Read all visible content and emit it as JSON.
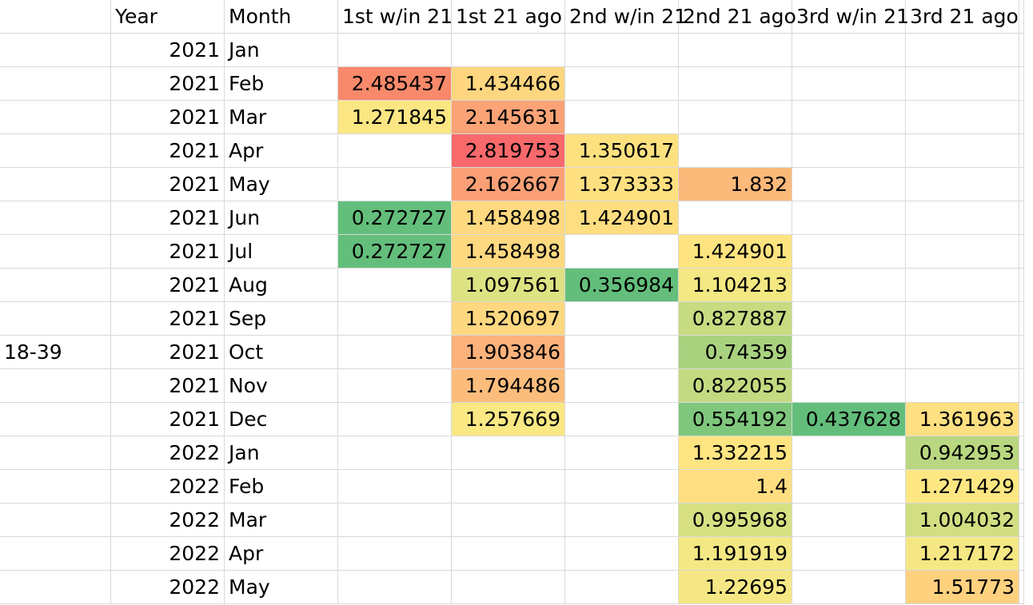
{
  "sheet": {
    "headers": [
      "",
      "Year",
      "Month",
      "1st w/in 21",
      "1st 21 ago",
      "2nd w/in 21",
      "2nd 21 ago",
      "3rd w/in 21",
      "3rd 21 ago"
    ],
    "group_label": "18-39",
    "group_label_row_index": 9,
    "rows": [
      {
        "year": "2021",
        "month": "Jan",
        "values": [
          "",
          "",
          "",
          "",
          "",
          ""
        ],
        "colors": [
          "",
          "",
          "",
          "",
          "",
          ""
        ]
      },
      {
        "year": "2021",
        "month": "Feb",
        "values": [
          "2.485437",
          "1.434466",
          "",
          "",
          "",
          ""
        ],
        "colors": [
          "#f8896b",
          "#fed67f",
          "",
          "",
          "",
          ""
        ]
      },
      {
        "year": "2021",
        "month": "Mar",
        "values": [
          "1.271845",
          "2.145631",
          "",
          "",
          "",
          ""
        ],
        "colors": [
          "#fbe683",
          "#fba376",
          "",
          "",
          "",
          ""
        ]
      },
      {
        "year": "2021",
        "month": "Apr",
        "values": [
          "",
          "2.819753",
          "1.350617",
          "",
          "",
          ""
        ],
        "colors": [
          "",
          "#f8696b",
          "#fde17f",
          "",
          "",
          ""
        ]
      },
      {
        "year": "2021",
        "month": "May",
        "values": [
          "",
          "2.162667",
          "1.373333",
          "1.832",
          "",
          ""
        ],
        "colors": [
          "",
          "#fba076",
          "#fee081",
          "#fbb97a",
          "",
          ""
        ]
      },
      {
        "year": "2021",
        "month": "Jun",
        "values": [
          "0.272727",
          "1.458498",
          "1.424901",
          "",
          "",
          ""
        ],
        "colors": [
          "#63be7b",
          "#fed980",
          "#fede80",
          "",
          "",
          ""
        ]
      },
      {
        "year": "2021",
        "month": "Jul",
        "values": [
          "0.272727",
          "1.458498",
          "",
          "1.424901",
          "",
          ""
        ],
        "colors": [
          "#63be7b",
          "#fed980",
          "",
          "#fee480",
          "",
          ""
        ]
      },
      {
        "year": "2021",
        "month": "Aug",
        "values": [
          "",
          "1.097561",
          "0.356984",
          "1.104213",
          "",
          ""
        ],
        "colors": [
          "",
          "#dde283",
          "#63be7b",
          "#f4e883",
          "",
          ""
        ]
      },
      {
        "year": "2021",
        "month": "Sep",
        "values": [
          "",
          "1.520697",
          "",
          "0.827887",
          "",
          ""
        ],
        "colors": [
          "",
          "#fed880",
          "",
          "#c7db81",
          "",
          ""
        ]
      },
      {
        "year": "2021",
        "month": "Oct",
        "values": [
          "",
          "1.903846",
          "",
          "0.74359",
          "",
          ""
        ],
        "colors": [
          "",
          "#fbb17a",
          "",
          "#a9d27f",
          "",
          ""
        ]
      },
      {
        "year": "2021",
        "month": "Nov",
        "values": [
          "",
          "1.794486",
          "",
          "0.822055",
          "",
          ""
        ],
        "colors": [
          "",
          "#fcbd7c",
          "",
          "#c3da81",
          "",
          ""
        ]
      },
      {
        "year": "2021",
        "month": "Dec",
        "values": [
          "",
          "1.257669",
          "",
          "0.554192",
          "0.437628",
          "1.361963"
        ],
        "colors": [
          "",
          "#f9e883",
          "",
          "#7fc77d",
          "#63be7b",
          "#fedf81"
        ]
      },
      {
        "year": "2022",
        "month": "Jan",
        "values": [
          "",
          "",
          "",
          "1.332215",
          "",
          "0.942953"
        ],
        "colors": [
          "",
          "",
          "",
          "#fee582",
          "",
          "#b9d780"
        ]
      },
      {
        "year": "2022",
        "month": "Feb",
        "values": [
          "",
          "",
          "",
          "1.4",
          "",
          "1.271429"
        ],
        "colors": [
          "",
          "",
          "",
          "#fede81",
          "",
          "#fde783"
        ]
      },
      {
        "year": "2022",
        "month": "Mar",
        "values": [
          "",
          "",
          "",
          "0.995968",
          "",
          "1.004032"
        ],
        "colors": [
          "",
          "",
          "",
          "#d6e082",
          "",
          "#d2de82"
        ]
      },
      {
        "year": "2022",
        "month": "Apr",
        "values": [
          "",
          "",
          "",
          "1.191919",
          "",
          "1.217172"
        ],
        "colors": [
          "",
          "",
          "",
          "#f3e884",
          "",
          "#f5e884"
        ]
      },
      {
        "year": "2022",
        "month": "May",
        "values": [
          "",
          "",
          "",
          "1.22695",
          "",
          "1.51773"
        ],
        "colors": [
          "",
          "",
          "",
          "#f5e884",
          "",
          "#fed17f"
        ]
      }
    ]
  }
}
